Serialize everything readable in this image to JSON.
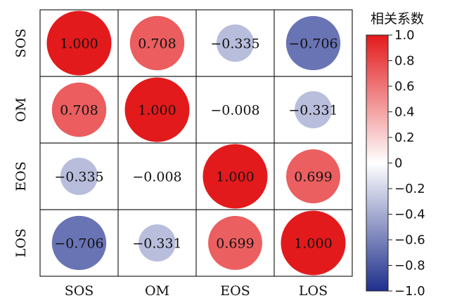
{
  "chart_data": {
    "type": "heatmap",
    "subtype": "correlation-circle-matrix",
    "variables": [
      "SOS",
      "OM",
      "EOS",
      "LOS"
    ],
    "matrix": [
      [
        1.0,
        0.708,
        -0.335,
        -0.706
      ],
      [
        0.708,
        1.0,
        -0.008,
        -0.331
      ],
      [
        -0.335,
        -0.008,
        1.0,
        0.699
      ],
      [
        -0.706,
        -0.331,
        0.699,
        1.0
      ]
    ],
    "labels": [
      [
        "1.000",
        "0.708",
        "−0.335",
        "−0.706"
      ],
      [
        "0.708",
        "1.000",
        "−0.008",
        "−0.331"
      ],
      [
        "−0.335",
        "−0.008",
        "1.000",
        "0.699"
      ],
      [
        "−0.706",
        "−0.331",
        "0.699",
        "1.000"
      ]
    ],
    "colorbar": {
      "title": "相关系数",
      "range": [
        -1.0,
        1.0
      ],
      "ticks": [
        {
          "value": 1.0,
          "label": "1.0"
        },
        {
          "value": 0.8,
          "label": "0.8"
        },
        {
          "value": 0.6,
          "label": "0.6"
        },
        {
          "value": 0.4,
          "label": "0.4"
        },
        {
          "value": 0.2,
          "label": "0.2"
        },
        {
          "value": 0.0,
          "label": "0"
        },
        {
          "value": -0.2,
          "label": "−0.2"
        },
        {
          "value": -0.4,
          "label": "−0.4"
        },
        {
          "value": -0.6,
          "label": "−0.6"
        },
        {
          "value": -0.8,
          "label": "−0.8"
        },
        {
          "value": -1.0,
          "label": "−1.0"
        }
      ],
      "colors": {
        "negative": "#2b3a96",
        "zero": "#ffffff",
        "positive": "#e31a1c"
      }
    },
    "grid": true,
    "legend": "right"
  }
}
